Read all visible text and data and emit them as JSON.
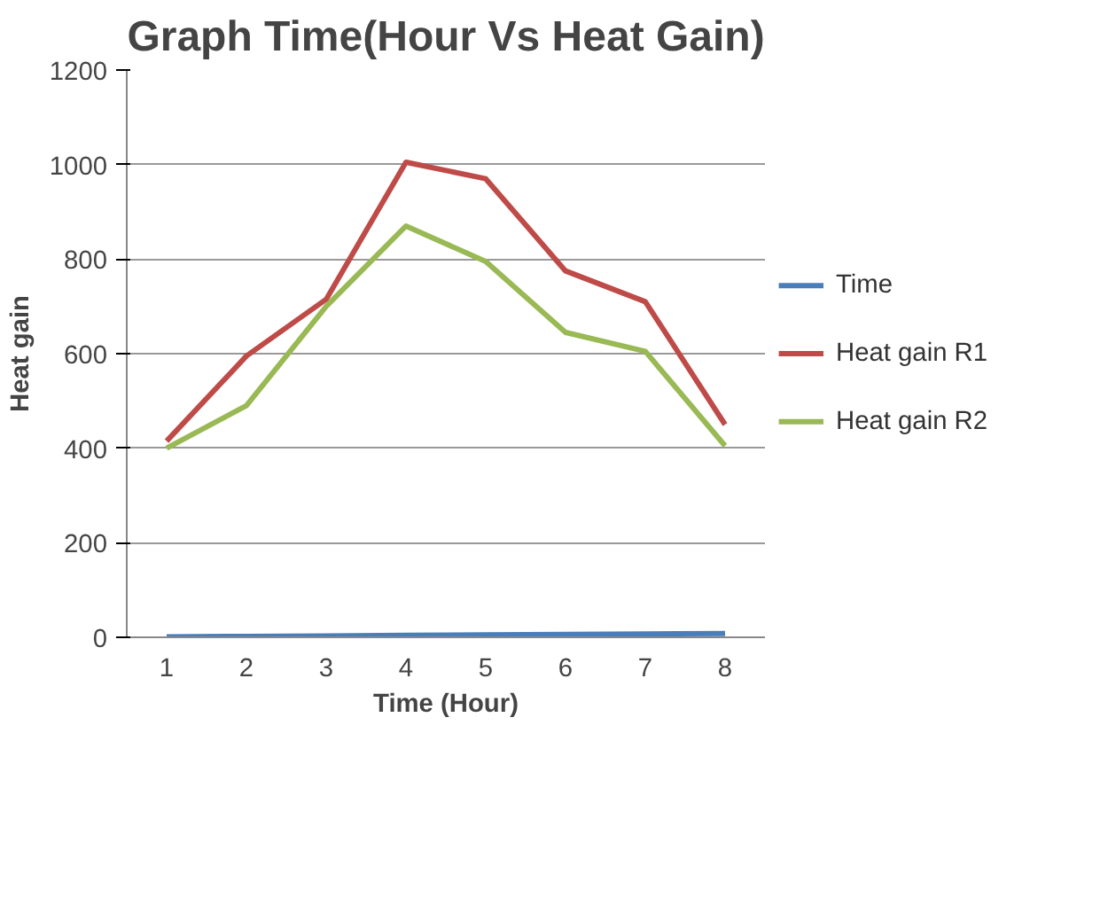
{
  "chart_data": {
    "type": "line",
    "title": "Graph Time(Hour Vs Heat Gain)",
    "xlabel": "Time (Hour)",
    "ylabel": "Heat gain",
    "categories": [
      "1",
      "2",
      "3",
      "4",
      "5",
      "6",
      "7",
      "8"
    ],
    "series": [
      {
        "name": "Time",
        "color": "#4a7ebb",
        "values": [
          1,
          2,
          3,
          4,
          5,
          6,
          7,
          8
        ]
      },
      {
        "name": "Heat gain R1",
        "color": "#be4b48",
        "values": [
          415,
          595,
          715,
          1005,
          970,
          775,
          710,
          450
        ]
      },
      {
        "name": "Heat gain R2",
        "color": "#98b954",
        "values": [
          400,
          490,
          700,
          870,
          795,
          645,
          605,
          405
        ]
      }
    ],
    "ylim": [
      0,
      1200
    ],
    "yticks": [
      0,
      200,
      400,
      600,
      800,
      1000,
      1200
    ],
    "grid": "y",
    "legend": "right",
    "marker": "none",
    "line_style": "solid"
  }
}
